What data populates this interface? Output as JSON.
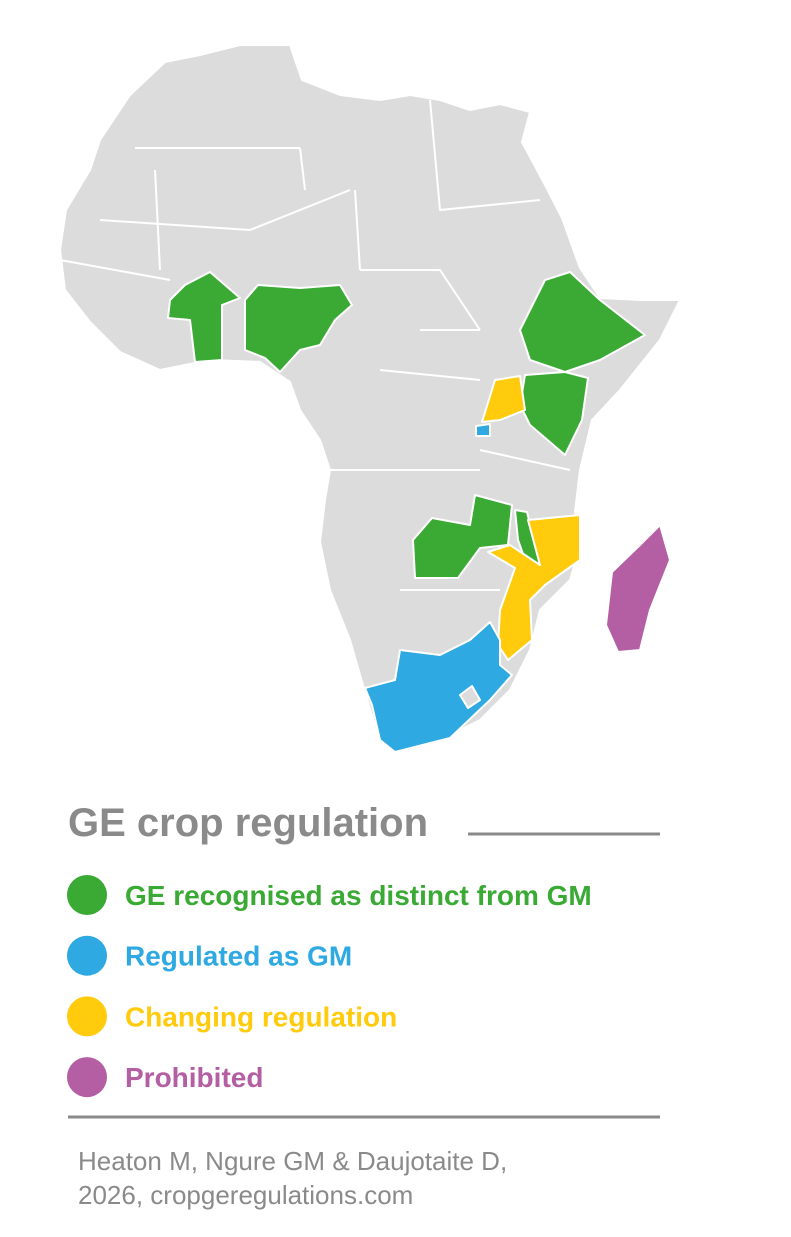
{
  "legend": {
    "title": "GE crop regulation",
    "items": [
      {
        "label": "GE recognised as distinct from GM",
        "color": "#3aaa35"
      },
      {
        "label": "Regulated as GM",
        "color": "#2ea9e1"
      },
      {
        "label": "Changing regulation",
        "color": "#ffcb0c"
      },
      {
        "label": "Prohibited",
        "color": "#b45ea3"
      }
    ]
  },
  "source": {
    "lines": [
      "Heaton M, Ngure GM & Daujotaite D,",
      "2026, cropgeregulations.com"
    ]
  }
}
